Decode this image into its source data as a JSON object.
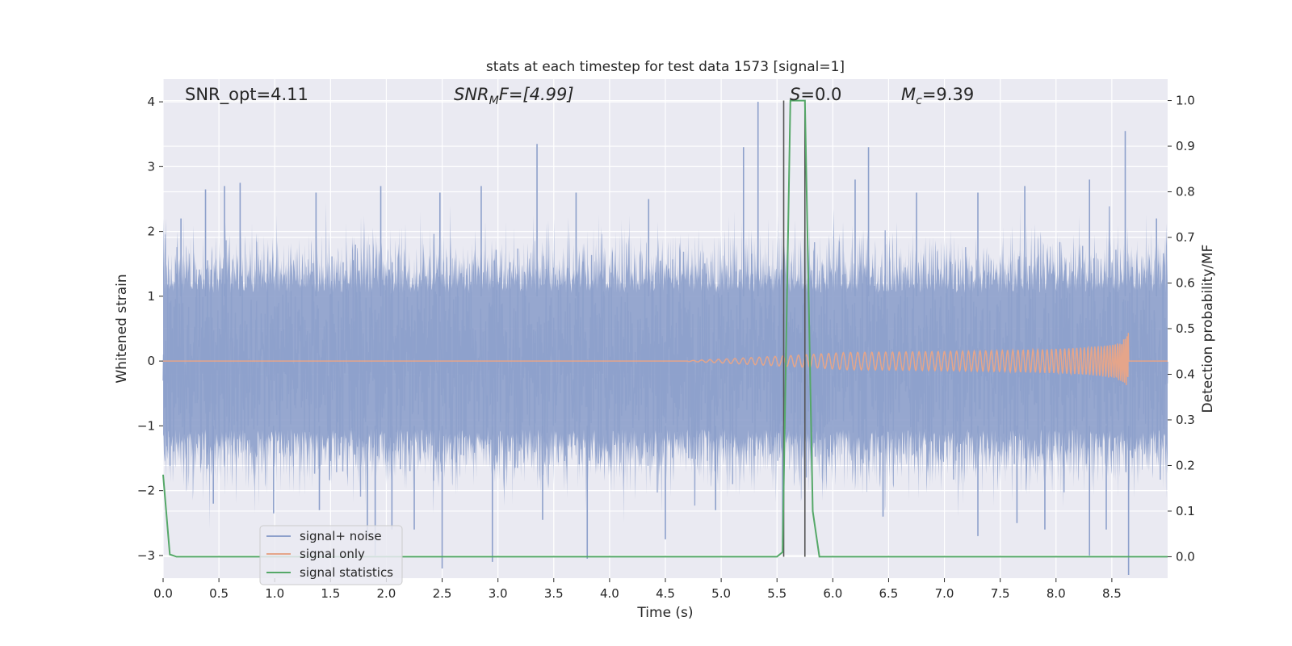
{
  "chart_data": {
    "type": "line",
    "title": "stats at each timestep for test data 1573 [signal=1]",
    "xlabel": "Time (s)",
    "ylabel_left": "Whitened strain",
    "ylabel_right": "Detection probability/MF",
    "xlim": [
      0.0,
      9.0
    ],
    "ylim_left": [
      -3.35,
      4.35
    ],
    "ylim_right": [
      -0.047,
      1.047
    ],
    "x_ticks": [
      "0.0",
      "0.5",
      "1.0",
      "1.5",
      "2.0",
      "2.5",
      "3.0",
      "3.5",
      "4.0",
      "4.5",
      "5.0",
      "5.5",
      "6.0",
      "6.5",
      "7.0",
      "7.5",
      "8.0",
      "8.5"
    ],
    "y_ticks_left": [
      "4",
      "3",
      "2",
      "1",
      "0",
      "−1",
      "−2",
      "−3"
    ],
    "y_ticks_right": [
      "1.0",
      "0.9",
      "0.8",
      "0.7",
      "0.6",
      "0.5",
      "0.4",
      "0.3",
      "0.2",
      "0.1",
      "0.0"
    ],
    "grid": true,
    "legend_position": "lower-left",
    "annotations": {
      "snr_opt": "SNR_opt=4.11",
      "snr_mf_prefix": "SNR",
      "snr_mf_sub": "M",
      "snr_mf_suffix": "F=[4.99]",
      "s_prefix": "S",
      "s_value": "=0.0",
      "mc_prefix": "M",
      "mc_sub": "c",
      "mc_value": "=9.39"
    },
    "vertical_lines_x": [
      5.56,
      5.75
    ],
    "series": [
      {
        "name": "signal+ noise",
        "color": "#8da0cb",
        "description": "whitened noise plus signal, amplitude envelope about ±1.2 with spikes to about ±3",
        "spike_points": [
          [
            0.16,
            2.2
          ],
          [
            0.38,
            2.65
          ],
          [
            0.55,
            2.7
          ],
          [
            0.69,
            2.75
          ],
          [
            1.37,
            2.6
          ],
          [
            1.95,
            2.7
          ],
          [
            2.48,
            2.6
          ],
          [
            2.85,
            2.7
          ],
          [
            3.35,
            3.35
          ],
          [
            3.7,
            2.6
          ],
          [
            4.35,
            2.5
          ],
          [
            5.2,
            3.3
          ],
          [
            5.33,
            4.0
          ],
          [
            6.2,
            2.8
          ],
          [
            6.32,
            3.3
          ],
          [
            6.75,
            2.6
          ],
          [
            7.3,
            2.6
          ],
          [
            7.72,
            2.7
          ],
          [
            8.3,
            2.8
          ],
          [
            8.62,
            3.55
          ],
          [
            8.9,
            2.2
          ],
          [
            0.45,
            -2.2
          ],
          [
            0.99,
            -2.35
          ],
          [
            1.4,
            -2.3
          ],
          [
            1.83,
            -2.7
          ],
          [
            1.9,
            -3.0
          ],
          [
            2.05,
            -2.6
          ],
          [
            2.25,
            -2.6
          ],
          [
            2.5,
            -3.2
          ],
          [
            2.95,
            -3.1
          ],
          [
            3.4,
            -2.45
          ],
          [
            3.8,
            -3.05
          ],
          [
            4.5,
            -2.75
          ],
          [
            4.95,
            -2.3
          ],
          [
            5.55,
            -2.8
          ],
          [
            6.45,
            -2.4
          ],
          [
            7.3,
            -2.7
          ],
          [
            7.65,
            -2.5
          ],
          [
            7.9,
            -2.6
          ],
          [
            8.3,
            -3.0
          ],
          [
            8.45,
            -2.6
          ],
          [
            8.65,
            -3.3
          ]
        ]
      },
      {
        "name": "signal only",
        "color": "#e5a58a",
        "description": "chirp signal starting near 4.7 s, growing to peak about ±0.45 at 8.65 s",
        "chirp_start": 4.7,
        "chirp_end": 8.65,
        "peak_amplitude": 0.45
      },
      {
        "name": "signal statistics",
        "color": "#55a868",
        "axis": "right",
        "x": [
          0.0,
          0.06,
          0.12,
          5.5,
          5.55,
          5.62,
          5.75,
          5.82,
          5.88,
          9.0
        ],
        "y": [
          0.18,
          0.005,
          0.0,
          0.0,
          0.01,
          1.0,
          1.0,
          0.1,
          0.0,
          0.0
        ]
      }
    ]
  },
  "legend": {
    "items": [
      "signal+ noise",
      "signal only",
      "signal statistics"
    ]
  }
}
